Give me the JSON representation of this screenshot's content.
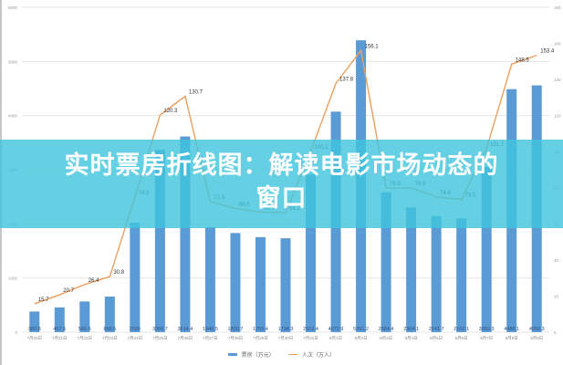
{
  "banner": {
    "title_line1": "实时票房折线图：解读电影市场动态的",
    "title_line2": "窗口"
  },
  "legend": {
    "bar_label": "票房（万元）",
    "line_label": "人次（万人）"
  },
  "colors": {
    "bar": "#5b9bd5",
    "line": "#ed9f5e",
    "banner": "#3ec4dc",
    "grid": "#e6e6e6"
  },
  "chart_data": {
    "type": "bar+line",
    "title": "",
    "categories": [
      "7月20日",
      "7月21日",
      "7月22日",
      "7月23日",
      "7月24日",
      "7月25日",
      "7月26日",
      "7月27日",
      "7月28日",
      "7月29日",
      "7月30日",
      "7月31日",
      "8月1日",
      "8月2日",
      "8月3日",
      "8月4日",
      "8月5日",
      "8月6日",
      "8月7日",
      "8月8日",
      "8月9日"
    ],
    "series": [
      {
        "name": "票房（万元）",
        "type": "bar",
        "axis": "left",
        "values": [
          380.8,
          457.6,
          566.6,
          656.6,
          2020.0,
          3366.7,
          3614.4,
          1940.5,
          1830.7,
          1755.4,
          1734.3,
          2912.4,
          4072.9,
          5391.2,
          2584.4,
          2304.1,
          2141.7,
          2102.1,
          3050.3,
          4488.1,
          4558.3
        ]
      },
      {
        "name": "人次（万人）",
        "type": "line",
        "axis": "right",
        "values": [
          15.7,
          20.7,
          26.4,
          30.8,
          74.9,
          120.3,
          130.7,
          72.3,
          68.6,
          66.5,
          66.2,
          100.1,
          137.8,
          156.1,
          79.9,
          79.9,
          74.9,
          73.5,
          101.7,
          148.5,
          153.4
        ]
      }
    ],
    "ylim_left": [
      0,
      6000
    ],
    "yticks_left": [
      0,
      1000,
      2000,
      3000,
      4000,
      5000,
      6000
    ],
    "ylim_right": [
      0,
      180
    ],
    "yticks_right": [
      0,
      20,
      40,
      60,
      80,
      100,
      120,
      140,
      160,
      180
    ],
    "grid": true,
    "legend_position": "bottom"
  }
}
